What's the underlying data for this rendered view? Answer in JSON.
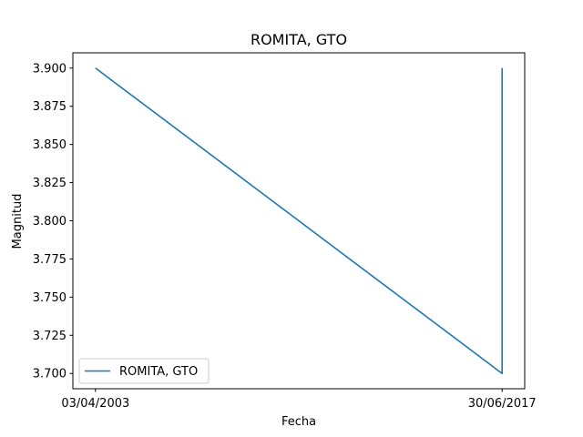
{
  "chart_data": {
    "type": "line",
    "title": "ROMITA, GTO",
    "xlabel": "Fecha",
    "ylabel": "Magnitud",
    "categories": [
      "03/04/2003",
      "30/06/2017",
      "30/06/2017"
    ],
    "series": [
      {
        "name": "ROMITA, GTO",
        "values": [
          3.9,
          3.7,
          3.9
        ],
        "color": "#1f77b4"
      }
    ],
    "x_ticks": [
      "03/04/2003",
      "30/06/2017"
    ],
    "y_ticks": [
      "3.700",
      "3.725",
      "3.750",
      "3.775",
      "3.800",
      "3.825",
      "3.850",
      "3.875",
      "3.900"
    ],
    "ylim": [
      3.69,
      3.91
    ],
    "grid": false,
    "legend_position": "lower-left"
  }
}
